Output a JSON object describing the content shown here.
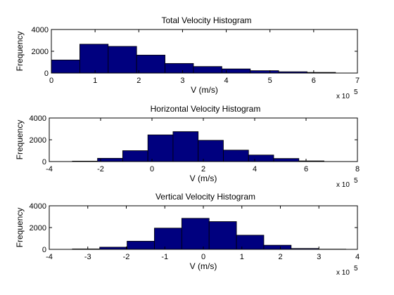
{
  "chart_data": [
    {
      "type": "bar",
      "title": "Total Velocity Histogram",
      "xlabel": "V (m/s)",
      "ylabel": "Frequency",
      "x_multiplier": "x 10",
      "x_multiplier_exp": "5",
      "xlim": [
        0,
        7
      ],
      "ylim": [
        0,
        4000
      ],
      "xticks": [
        0,
        1,
        2,
        3,
        4,
        5,
        6,
        7
      ],
      "yticks": [
        0,
        2000,
        4000
      ],
      "bin_edges": [
        0,
        0.65,
        1.3,
        1.95,
        2.6,
        3.25,
        3.9,
        4.55,
        5.2,
        5.85,
        6.5
      ],
      "values": [
        1200,
        2650,
        2450,
        1650,
        880,
        600,
        380,
        220,
        120,
        60
      ]
    },
    {
      "type": "bar",
      "title": "Horizontal Velocity Histogram",
      "xlabel": "V (m/s)",
      "ylabel": "Frequency",
      "x_multiplier": "x 10",
      "x_multiplier_exp": "5",
      "xlim": [
        -4,
        8
      ],
      "ylim": [
        0,
        4000
      ],
      "xticks": [
        -4,
        -2,
        0,
        2,
        4,
        6,
        8
      ],
      "yticks": [
        0,
        2000,
        4000
      ],
      "bin_edges": [
        -3.1,
        -2.12,
        -1.14,
        -0.16,
        0.82,
        1.8,
        2.78,
        3.76,
        4.74,
        5.72,
        6.7
      ],
      "values": [
        40,
        300,
        1000,
        2450,
        2750,
        1950,
        1050,
        600,
        280,
        60
      ]
    },
    {
      "type": "bar",
      "title": "Vertical Velocity Histogram",
      "xlabel": "V (m/s)",
      "ylabel": "Frequency",
      "x_multiplier": "x 10",
      "x_multiplier_exp": "5",
      "xlim": [
        -4,
        4
      ],
      "ylim": [
        0,
        4000
      ],
      "xticks": [
        -4,
        -3,
        -2,
        -1,
        0,
        1,
        2,
        3,
        4
      ],
      "yticks": [
        0,
        2000,
        4000
      ],
      "bin_edges": [
        -3.4,
        -2.69,
        -1.98,
        -1.27,
        -0.56,
        0.15,
        0.86,
        1.57,
        2.28,
        2.99,
        3.7
      ],
      "values": [
        40,
        200,
        750,
        1950,
        2850,
        2550,
        1300,
        380,
        80,
        20
      ]
    }
  ]
}
